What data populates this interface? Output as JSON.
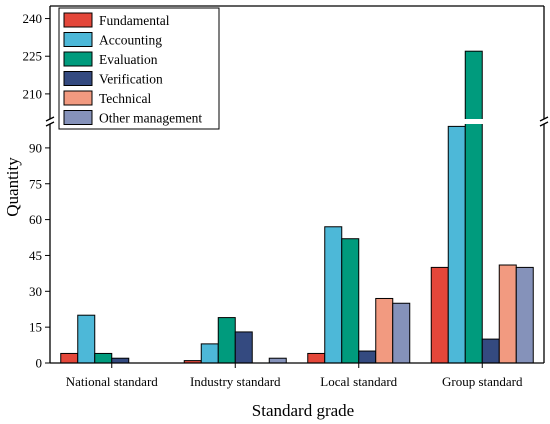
{
  "chart_data": {
    "type": "bar",
    "title": "",
    "xlabel": "Standard grade",
    "ylabel": "Quantity",
    "categories": [
      "National standard",
      "Industry standard",
      "Local standard",
      "Group standard"
    ],
    "series": [
      {
        "name": "Fundamental",
        "color": "#E4473A",
        "values": [
          4,
          1,
          4,
          40
        ]
      },
      {
        "name": "Accounting",
        "color": "#4DB8D8",
        "values": [
          20,
          8,
          57,
          99
        ]
      },
      {
        "name": "Evaluation",
        "color": "#009B7D",
        "values": [
          4,
          19,
          52,
          227
        ]
      },
      {
        "name": "Verification",
        "color": "#344A80",
        "values": [
          2,
          13,
          5,
          10
        ]
      },
      {
        "name": "Technical",
        "color": "#F29A80",
        "values": [
          0,
          0,
          27,
          41
        ]
      },
      {
        "name": "Other management",
        "color": "#8592BA",
        "values": [
          0,
          2,
          25,
          40
        ]
      }
    ],
    "y_axis_break": {
      "lower_segment": [
        0,
        100
      ],
      "upper_segment": [
        200,
        245
      ]
    },
    "y_ticks": [
      0,
      15,
      30,
      45,
      60,
      75,
      90,
      210,
      225,
      240
    ],
    "legend_position": "top-left",
    "grid": false
  }
}
